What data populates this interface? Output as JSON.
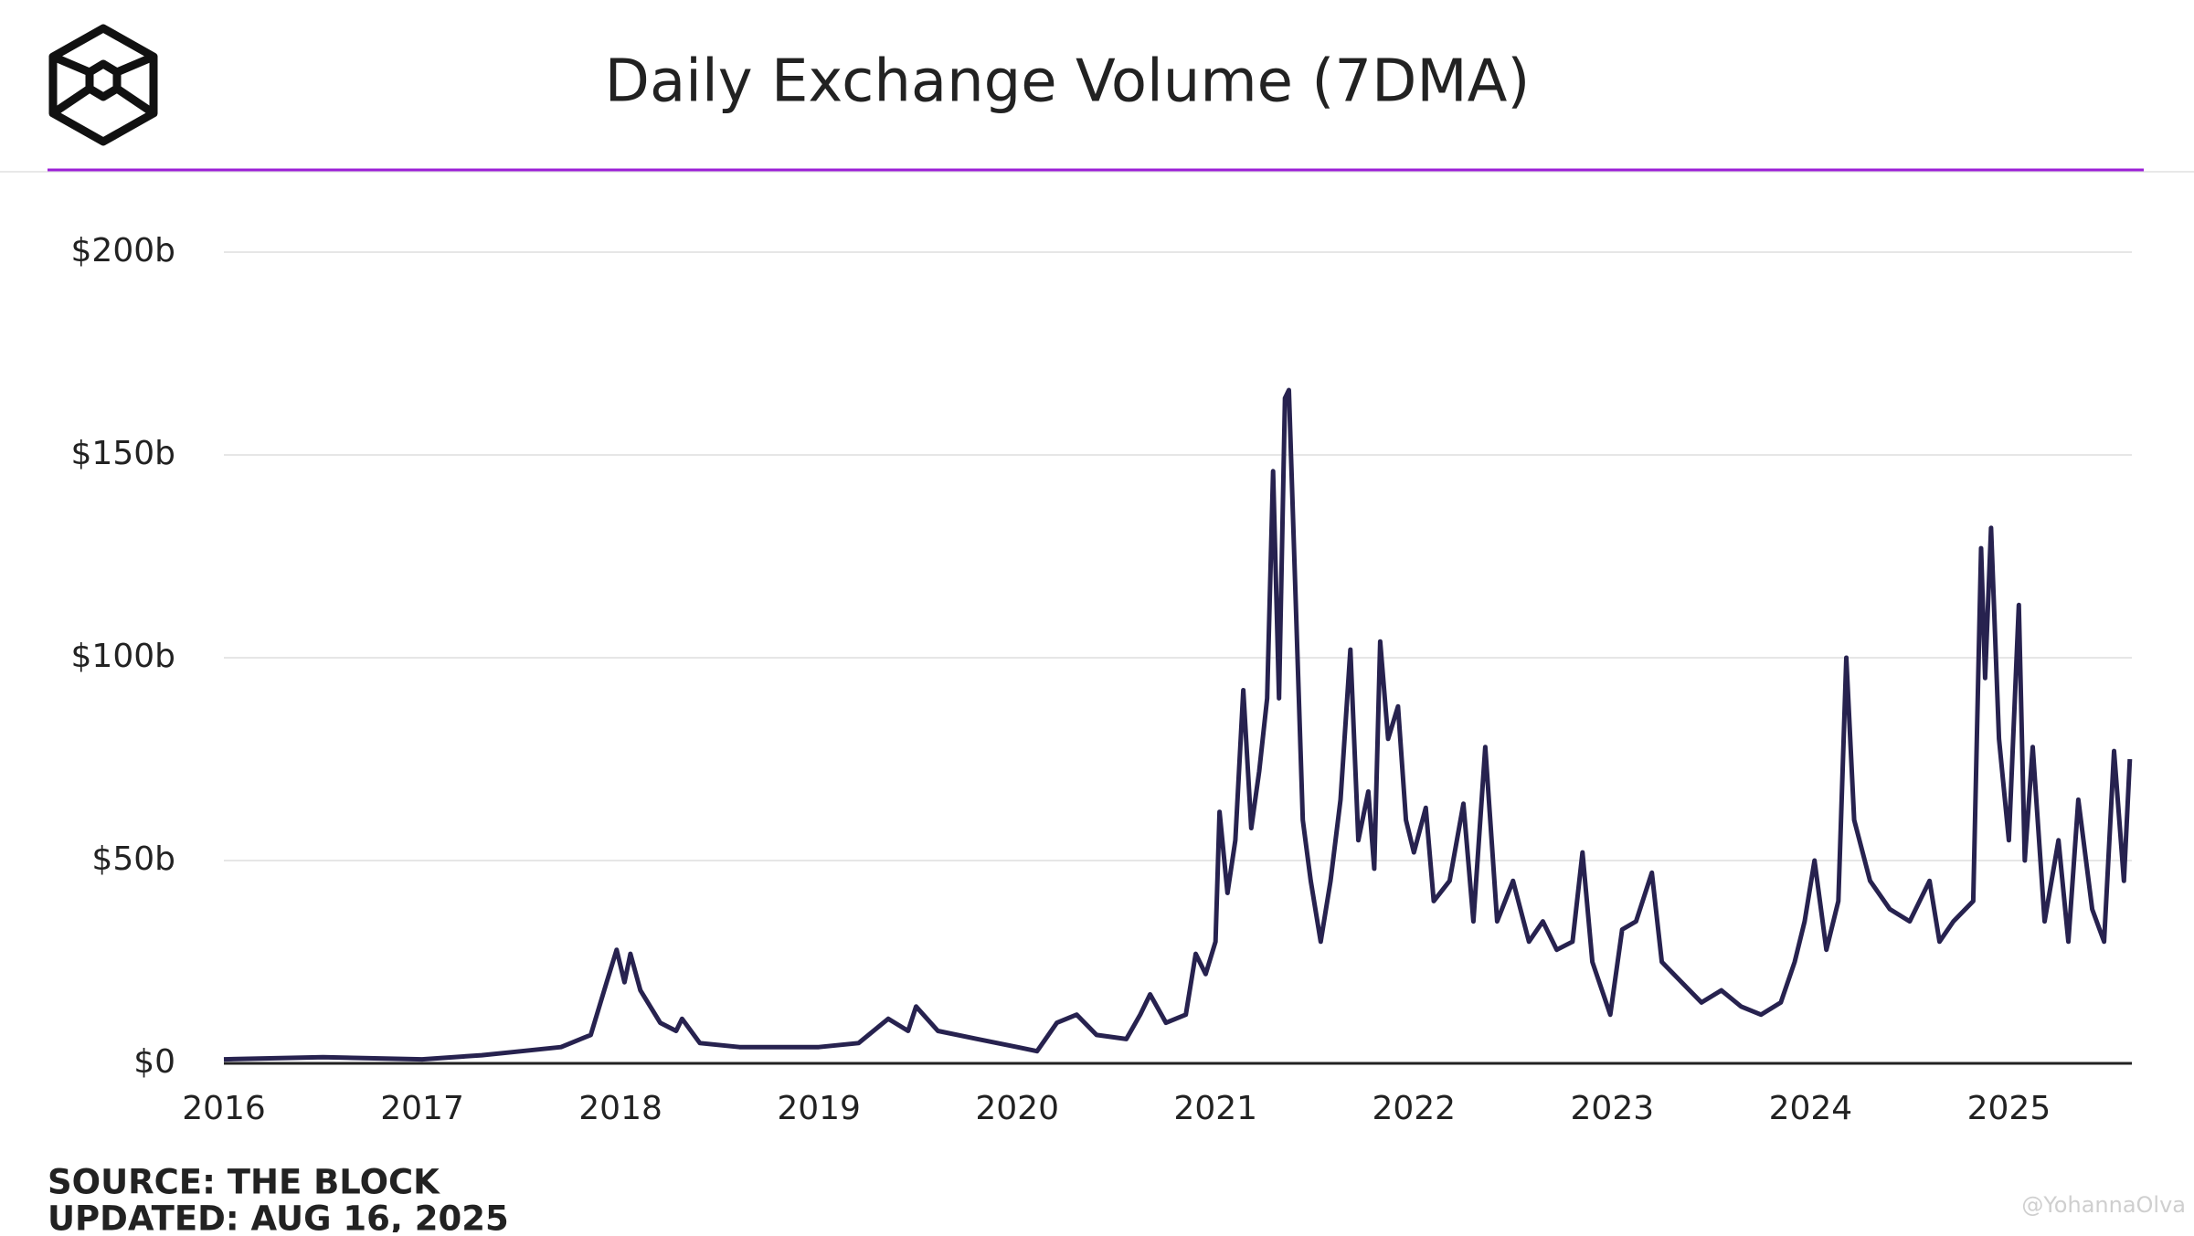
{
  "chart_data": {
    "type": "line",
    "title": "Daily Exchange Volume (7DMA)",
    "source": "SOURCE: THE BLOCK",
    "updated": "UPDATED: AUG 16, 2025",
    "watermark": "@YohannaOlva",
    "x": [
      2016.0,
      2016.5,
      2017.0,
      2017.3,
      2017.5,
      2017.7,
      2017.85,
      2017.93,
      2017.98,
      2018.02,
      2018.05,
      2018.1,
      2018.2,
      2018.28,
      2018.31,
      2018.4,
      2018.6,
      2018.8,
      2019.0,
      2019.2,
      2019.35,
      2019.45,
      2019.49,
      2019.6,
      2019.8,
      2020.0,
      2020.1,
      2020.2,
      2020.3,
      2020.4,
      2020.55,
      2020.62,
      2020.67,
      2020.75,
      2020.85,
      2020.9,
      2020.95,
      2021.0,
      2021.02,
      2021.06,
      2021.1,
      2021.14,
      2021.18,
      2021.22,
      2021.26,
      2021.29,
      2021.32,
      2021.35,
      2021.37,
      2021.4,
      2021.44,
      2021.48,
      2021.53,
      2021.58,
      2021.63,
      2021.68,
      2021.72,
      2021.77,
      2021.8,
      2021.83,
      2021.87,
      2021.92,
      2021.96,
      2022.0,
      2022.06,
      2022.1,
      2022.18,
      2022.25,
      2022.3,
      2022.36,
      2022.42,
      2022.5,
      2022.58,
      2022.65,
      2022.72,
      2022.8,
      2022.85,
      2022.9,
      2022.99,
      2023.05,
      2023.12,
      2023.2,
      2023.25,
      2023.35,
      2023.45,
      2023.55,
      2023.65,
      2023.75,
      2023.85,
      2023.92,
      2023.97,
      2024.02,
      2024.08,
      2024.14,
      2024.18,
      2024.22,
      2024.3,
      2024.4,
      2024.5,
      2024.6,
      2024.65,
      2024.72,
      2024.82,
      2024.86,
      2024.88,
      2024.91,
      2024.95,
      2025.0,
      2025.05,
      2025.08,
      2025.12,
      2025.18,
      2025.25,
      2025.3,
      2025.35,
      2025.42,
      2025.48,
      2025.53,
      2025.58,
      2025.61
    ],
    "series": [
      {
        "color": "#27224f",
        "values": [
          1,
          1.5,
          1,
          2,
          3,
          4,
          7,
          20,
          28,
          20,
          27,
          18,
          10,
          8,
          11,
          5,
          4,
          4,
          4,
          5,
          11,
          8,
          14,
          8,
          6,
          4,
          3,
          10,
          12,
          7,
          6,
          12,
          17,
          10,
          12,
          27,
          22,
          30,
          62,
          42,
          55,
          92,
          58,
          72,
          90,
          146,
          90,
          164,
          166,
          120,
          60,
          45,
          30,
          45,
          65,
          102,
          55,
          67,
          48,
          104,
          80,
          88,
          60,
          52,
          63,
          40,
          45,
          64,
          35,
          78,
          35,
          45,
          30,
          35,
          28,
          30,
          52,
          25,
          12,
          33,
          35,
          47,
          25,
          20,
          15,
          18,
          14,
          12,
          15,
          25,
          35,
          50,
          28,
          40,
          100,
          60,
          45,
          38,
          35,
          45,
          30,
          35,
          40,
          127,
          95,
          132,
          80,
          55,
          113,
          50,
          78,
          35,
          55,
          30,
          65,
          38,
          30,
          77,
          45,
          75
        ]
      }
    ],
    "xlim": [
      2016,
      2025.62
    ],
    "xticks": [
      2016,
      2017,
      2018,
      2019,
      2020,
      2021,
      2022,
      2023,
      2024,
      2025
    ],
    "ylim": [
      0,
      200
    ],
    "yticks": [
      {
        "value": 0,
        "label": "$0"
      },
      {
        "value": 50,
        "label": "$50b"
      },
      {
        "value": 100,
        "label": "$100b"
      },
      {
        "value": 150,
        "label": "$150b"
      },
      {
        "value": 200,
        "label": "$200b"
      }
    ],
    "grid": true
  }
}
